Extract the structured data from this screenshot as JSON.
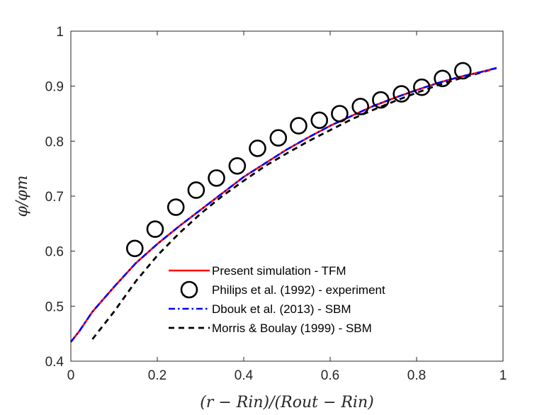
{
  "chart_data": {
    "type": "line",
    "title": "",
    "xlabel": "(r − Rin)/(Rout − Rin)",
    "ylabel": "φ/φm",
    "xlim": [
      0,
      1
    ],
    "ylim": [
      0.4,
      1
    ],
    "xticks": [
      0,
      0.2,
      0.4,
      0.6,
      0.8,
      1
    ],
    "yticks": [
      0.4,
      0.5,
      0.6,
      0.7,
      0.8,
      0.9,
      1
    ],
    "xtick_labels": [
      "0",
      "0.2",
      "0.4",
      "0.6",
      "0.8",
      "1"
    ],
    "ytick_labels": [
      "0.4",
      "0.5",
      "0.6",
      "0.7",
      "0.8",
      "0.9",
      "1"
    ],
    "grid": false,
    "legend_position": "bottom-center",
    "series": [
      {
        "name": "Present simulation - TFM",
        "style": "solid-line",
        "color": "#ff0000",
        "x": [
          0.0,
          0.02,
          0.05,
          0.1,
          0.15,
          0.2,
          0.25,
          0.3,
          0.35,
          0.4,
          0.45,
          0.5,
          0.55,
          0.6,
          0.65,
          0.7,
          0.75,
          0.8,
          0.85,
          0.9,
          0.95,
          0.985
        ],
        "y": [
          0.435,
          0.455,
          0.49,
          0.535,
          0.578,
          0.613,
          0.645,
          0.675,
          0.705,
          0.735,
          0.76,
          0.785,
          0.807,
          0.828,
          0.846,
          0.864,
          0.879,
          0.893,
          0.906,
          0.917,
          0.926,
          0.933
        ]
      },
      {
        "name": "Philips et al. (1992) - experiment",
        "style": "circle-marker",
        "color": "#000000",
        "x": [
          0.148,
          0.195,
          0.243,
          0.29,
          0.337,
          0.385,
          0.432,
          0.48,
          0.527,
          0.575,
          0.622,
          0.67,
          0.717,
          0.765,
          0.812,
          0.86,
          0.907
        ],
        "y": [
          0.605,
          0.64,
          0.68,
          0.711,
          0.733,
          0.755,
          0.787,
          0.806,
          0.828,
          0.838,
          0.85,
          0.863,
          0.875,
          0.886,
          0.898,
          0.914,
          0.928
        ]
      },
      {
        "name": "Dbouk et al. (2013) - SBM",
        "style": "dash-dot-line",
        "color": "#0000ff",
        "x": [
          0.0,
          0.02,
          0.05,
          0.1,
          0.15,
          0.2,
          0.25,
          0.3,
          0.35,
          0.4,
          0.45,
          0.5,
          0.55,
          0.6,
          0.65,
          0.7,
          0.75,
          0.8,
          0.85,
          0.9,
          0.95,
          0.985
        ],
        "y": [
          0.435,
          0.455,
          0.49,
          0.535,
          0.578,
          0.613,
          0.645,
          0.675,
          0.705,
          0.735,
          0.76,
          0.785,
          0.807,
          0.828,
          0.846,
          0.864,
          0.879,
          0.893,
          0.906,
          0.917,
          0.926,
          0.933
        ]
      },
      {
        "name": "Morris & Boulay (1999) - SBM",
        "style": "dashed-line",
        "color": "#000000",
        "x": [
          0.05,
          0.1,
          0.15,
          0.2,
          0.25,
          0.3,
          0.35,
          0.4,
          0.45,
          0.5,
          0.55,
          0.6,
          0.65,
          0.7,
          0.75,
          0.8,
          0.85,
          0.9,
          0.95,
          0.985
        ],
        "y": [
          0.44,
          0.49,
          0.545,
          0.592,
          0.632,
          0.668,
          0.7,
          0.728,
          0.755,
          0.778,
          0.8,
          0.82,
          0.84,
          0.857,
          0.873,
          0.888,
          0.902,
          0.914,
          0.925,
          0.933
        ]
      }
    ]
  }
}
